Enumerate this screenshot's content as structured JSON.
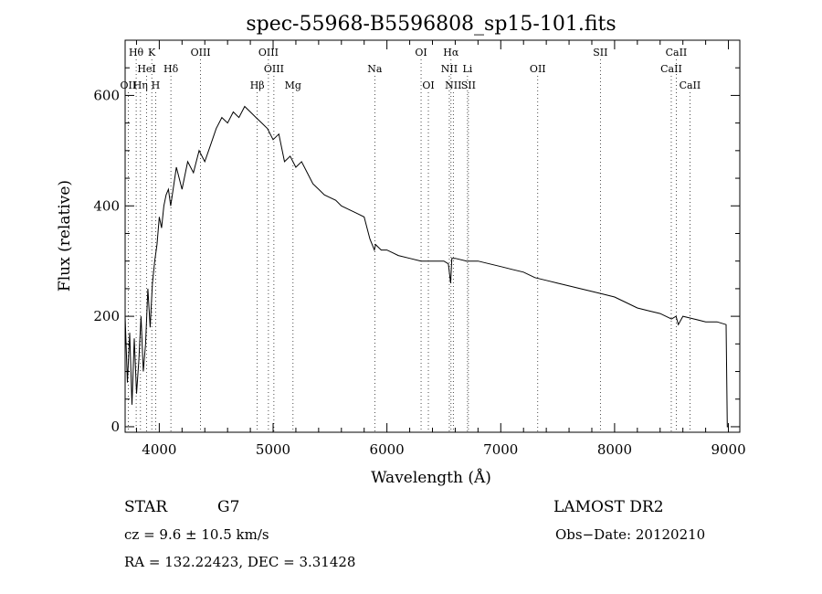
{
  "chart_data": {
    "type": "line",
    "title": "spec-55968-B5596808_sp15-101.fits",
    "xlabel": "Wavelength (Å)",
    "ylabel": "Flux (relative)",
    "xlim": [
      3700,
      9100
    ],
    "ylim": [
      -10,
      700
    ],
    "x_ticks": [
      4000,
      5000,
      6000,
      7000,
      8000,
      9000
    ],
    "x_tick_labels": [
      "4000",
      "5000",
      "6000",
      "7000",
      "8000",
      "9000"
    ],
    "y_ticks": [
      0,
      200,
      400,
      600
    ],
    "y_tick_labels": [
      "0",
      "200",
      "400",
      "600"
    ],
    "grid": false,
    "series": [
      {
        "x": [
          3700,
          3720,
          3740,
          3760,
          3780,
          3800,
          3820,
          3840,
          3860,
          3880,
          3900,
          3920,
          3940,
          3960,
          3980,
          4000,
          4020,
          4040,
          4060,
          4080,
          4100,
          4150,
          4200,
          4250,
          4300,
          4350,
          4400,
          4450,
          4500,
          4550,
          4600,
          4650,
          4700,
          4750,
          4800,
          4850,
          4900,
          4950,
          5000,
          5050,
          5100,
          5150,
          5200,
          5250,
          5300,
          5350,
          5400,
          5450,
          5500,
          5550,
          5600,
          5650,
          5700,
          5750,
          5800,
          5850,
          5890,
          5900,
          5950,
          6000,
          6050,
          6100,
          6200,
          6300,
          6400,
          6500,
          6540,
          6560,
          6570,
          6600,
          6700,
          6800,
          6900,
          7000,
          7100,
          7200,
          7300,
          7400,
          7500,
          7600,
          7700,
          7800,
          7900,
          8000,
          8100,
          8200,
          8300,
          8400,
          8500,
          8540,
          8560,
          8600,
          8700,
          8800,
          8900,
          8980,
          8990,
          9000
        ],
        "y": [
          200,
          80,
          170,
          40,
          160,
          60,
          120,
          200,
          100,
          150,
          250,
          180,
          260,
          300,
          330,
          380,
          360,
          400,
          420,
          430,
          400,
          470,
          430,
          480,
          460,
          500,
          480,
          510,
          540,
          560,
          550,
          570,
          560,
          580,
          570,
          560,
          550,
          540,
          520,
          530,
          480,
          490,
          470,
          480,
          460,
          440,
          430,
          420,
          415,
          410,
          400,
          395,
          390,
          385,
          380,
          340,
          320,
          330,
          320,
          320,
          315,
          310,
          305,
          300,
          300,
          300,
          295,
          260,
          305,
          305,
          300,
          300,
          295,
          290,
          285,
          280,
          270,
          265,
          260,
          255,
          250,
          245,
          240,
          235,
          225,
          215,
          210,
          205,
          195,
          200,
          185,
          200,
          195,
          190,
          190,
          185,
          0,
          0
        ]
      }
    ],
    "spectral_lines": [
      {
        "label": "Hθ",
        "x": 3797,
        "row": 0
      },
      {
        "label": "K",
        "x": 3934,
        "row": 0
      },
      {
        "label": "OIII",
        "x": 4363,
        "row": 0
      },
      {
        "label": "OIII",
        "x": 4959,
        "row": 0
      },
      {
        "label": "OI",
        "x": 6300,
        "row": 0
      },
      {
        "label": "Hα",
        "x": 6563,
        "row": 0
      },
      {
        "label": "SII",
        "x": 7875,
        "row": 0
      },
      {
        "label": "CaII",
        "x": 8542,
        "row": 0
      },
      {
        "label": "HeI",
        "x": 3889,
        "row": 1
      },
      {
        "label": "Hδ",
        "x": 4102,
        "row": 1
      },
      {
        "label": "OIII",
        "x": 5007,
        "row": 1
      },
      {
        "label": "Na",
        "x": 5893,
        "row": 1
      },
      {
        "label": "NII",
        "x": 6548,
        "row": 1
      },
      {
        "label": "Li",
        "x": 6708,
        "row": 1
      },
      {
        "label": "OII",
        "x": 7325,
        "row": 1
      },
      {
        "label": "CaII",
        "x": 8498,
        "row": 1
      },
      {
        "label": "OII",
        "x": 3727,
        "row": 2
      },
      {
        "label": "Hη",
        "x": 3835,
        "row": 2
      },
      {
        "label": "H",
        "x": 3968,
        "row": 2
      },
      {
        "label": "Hβ",
        "x": 4861,
        "row": 2
      },
      {
        "label": "Mg",
        "x": 5175,
        "row": 2
      },
      {
        "label": "OI",
        "x": 6364,
        "row": 2
      },
      {
        "label": "NII",
        "x": 6583,
        "row": 2
      },
      {
        "label": "SII",
        "x": 6716,
        "row": 2
      },
      {
        "label": "CaII",
        "x": 8662,
        "row": 2
      }
    ]
  },
  "info": {
    "object_class": "STAR",
    "subclass": "G7",
    "survey": "LAMOST DR2",
    "redshift": "cz = 9.6 ± 10.5 km/s",
    "obs_date": "Obs−Date: 20120210",
    "coords": "RA = 132.22423, DEC =   3.31428"
  }
}
